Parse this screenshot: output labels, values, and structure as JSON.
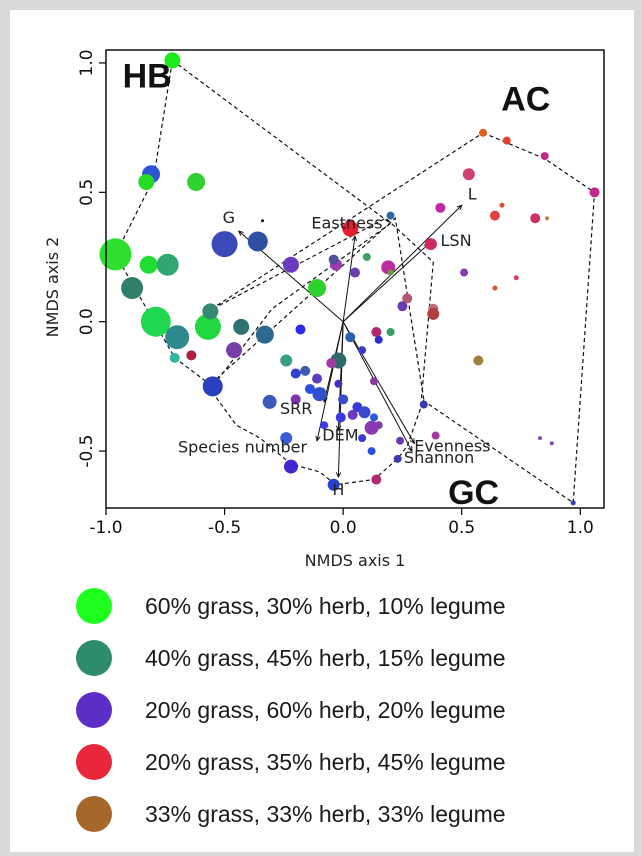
{
  "chart_data": {
    "type": "scatter",
    "xlabel": "NMDS axis 1",
    "ylabel": "NMDS axis 2",
    "xlim": [
      -1.0,
      1.1
    ],
    "ylim": [
      -0.72,
      1.05
    ],
    "xticks": [
      -1.0,
      -0.5,
      0.0,
      0.5,
      1.0
    ],
    "xtick_labels": [
      "-1.0",
      "-0.5",
      "0.0",
      "0.5",
      "1.0"
    ],
    "yticks": [
      -0.5,
      0.0,
      0.5,
      1.0
    ],
    "ytick_labels": [
      "-0.5",
      "0.0",
      "0.5",
      "1.0"
    ],
    "grid": false,
    "group_labels": [
      {
        "text": "HB",
        "x": -0.93,
        "y": 0.94
      },
      {
        "text": "AC",
        "x": 0.77,
        "y": 0.85
      },
      {
        "text": "GC",
        "x": 0.55,
        "y": -0.67
      }
    ],
    "hulls": [
      {
        "group": "HB",
        "points": [
          [
            -0.72,
            1.01
          ],
          [
            0.2,
            0.38
          ],
          [
            -0.3,
            0.05
          ],
          [
            -0.55,
            -0.25
          ],
          [
            -0.71,
            -0.14
          ],
          [
            -0.96,
            0.26
          ],
          [
            -0.8,
            0.55
          ]
        ]
      },
      {
        "group": "AC",
        "points": [
          [
            0.59,
            0.73
          ],
          [
            0.85,
            0.63
          ],
          [
            1.06,
            0.5
          ],
          [
            0.97,
            -0.7
          ],
          [
            0.33,
            -0.3
          ],
          [
            0.38,
            0.23
          ],
          [
            0.18,
            0.4
          ],
          [
            -0.57,
            0.04
          ]
        ]
      },
      {
        "group": "GC",
        "points": [
          [
            -0.57,
            -0.25
          ],
          [
            -0.45,
            -0.4
          ],
          [
            -0.35,
            -0.45
          ],
          [
            -0.22,
            -0.55
          ],
          [
            -0.1,
            -0.58
          ],
          [
            -0.03,
            -0.63
          ],
          [
            0.13,
            -0.61
          ],
          [
            0.23,
            -0.53
          ],
          [
            0.27,
            -0.48
          ],
          [
            0.34,
            -0.3
          ],
          [
            0.22,
            0.4
          ]
        ]
      }
    ],
    "vectors": [
      {
        "label": "L",
        "x": 0.5,
        "y": 0.45
      },
      {
        "label": "LSN",
        "x": 0.36,
        "y": 0.3
      },
      {
        "label": "Eastness",
        "x": 0.05,
        "y": 0.33
      },
      {
        "label": "G",
        "x": -0.44,
        "y": 0.35
      },
      {
        "label": "SRR",
        "x": -0.08,
        "y": -0.31
      },
      {
        "label": "DEM",
        "x": -0.02,
        "y": -0.42
      },
      {
        "label": "Species number",
        "x": -0.11,
        "y": -0.46
      },
      {
        "label": "Evenness",
        "x": 0.3,
        "y": -0.47
      },
      {
        "label": "Shannon",
        "x": 0.29,
        "y": -0.5
      },
      {
        "label": "H",
        "x": -0.02,
        "y": -0.6
      }
    ],
    "points": [
      {
        "x": -0.72,
        "y": 1.01,
        "r": 8,
        "c": "#1ee81e"
      },
      {
        "x": -0.81,
        "y": 0.57,
        "r": 9,
        "c": "#2e55d8"
      },
      {
        "x": -0.83,
        "y": 0.54,
        "r": 8,
        "c": "#22dd22"
      },
      {
        "x": -0.62,
        "y": 0.54,
        "r": 9,
        "c": "#30d030"
      },
      {
        "x": -0.96,
        "y": 0.26,
        "r": 16,
        "c": "#2ee02e"
      },
      {
        "x": -0.82,
        "y": 0.22,
        "r": 9,
        "c": "#20dd30"
      },
      {
        "x": -0.74,
        "y": 0.22,
        "r": 11,
        "c": "#2ea870"
      },
      {
        "x": -0.89,
        "y": 0.13,
        "r": 11,
        "c": "#2f7f6a"
      },
      {
        "x": -0.79,
        "y": 0.0,
        "r": 15,
        "c": "#22d850"
      },
      {
        "x": -0.7,
        "y": -0.06,
        "r": 12,
        "c": "#2f8a90"
      },
      {
        "x": -0.57,
        "y": -0.02,
        "r": 13,
        "c": "#22d840"
      },
      {
        "x": -0.56,
        "y": 0.04,
        "r": 8,
        "c": "#338a70"
      },
      {
        "x": -0.43,
        "y": -0.02,
        "r": 8,
        "c": "#2f7070"
      },
      {
        "x": -0.71,
        "y": -0.14,
        "r": 5,
        "c": "#2fb8a0"
      },
      {
        "x": -0.64,
        "y": -0.13,
        "r": 5,
        "c": "#b02040"
      },
      {
        "x": -0.5,
        "y": 0.3,
        "r": 13,
        "c": "#3a4ab8"
      },
      {
        "x": -0.36,
        "y": 0.31,
        "r": 10,
        "c": "#304fa0"
      },
      {
        "x": -0.34,
        "y": 0.39,
        "r": 1.5,
        "c": "#000000"
      },
      {
        "x": -0.33,
        "y": -0.05,
        "r": 9,
        "c": "#2e6a90"
      },
      {
        "x": -0.46,
        "y": -0.11,
        "r": 8,
        "c": "#7a3ea8"
      },
      {
        "x": -0.55,
        "y": -0.25,
        "r": 10,
        "c": "#2a40c0"
      },
      {
        "x": -0.22,
        "y": 0.22,
        "r": 8,
        "c": "#6a3ac0"
      },
      {
        "x": -0.11,
        "y": 0.13,
        "r": 9,
        "c": "#2ed02e"
      },
      {
        "x": -0.18,
        "y": -0.03,
        "r": 5,
        "c": "#2a2ae8"
      },
      {
        "x": -0.24,
        "y": -0.15,
        "r": 6,
        "c": "#35a080"
      },
      {
        "x": -0.2,
        "y": -0.2,
        "r": 5,
        "c": "#3040d0"
      },
      {
        "x": -0.16,
        "y": -0.19,
        "r": 5,
        "c": "#3f5ab0"
      },
      {
        "x": -0.11,
        "y": -0.22,
        "r": 5,
        "c": "#5a40c0"
      },
      {
        "x": -0.14,
        "y": -0.26,
        "r": 5,
        "c": "#2a50e0"
      },
      {
        "x": -0.09,
        "y": -0.27,
        "r": 4,
        "c": "#3070a0"
      },
      {
        "x": -0.1,
        "y": -0.28,
        "r": 7,
        "c": "#3050d0"
      },
      {
        "x": -0.2,
        "y": -0.3,
        "r": 5,
        "c": "#8030b0"
      },
      {
        "x": -0.31,
        "y": -0.31,
        "r": 7,
        "c": "#3e5ab8"
      },
      {
        "x": -0.08,
        "y": -0.4,
        "r": 4,
        "c": "#3a3af0"
      },
      {
        "x": -0.24,
        "y": -0.45,
        "r": 6,
        "c": "#3a5ad8"
      },
      {
        "x": -0.22,
        "y": -0.56,
        "r": 7,
        "c": "#4028d0"
      },
      {
        "x": -0.04,
        "y": -0.63,
        "r": 6,
        "c": "#2a40d0"
      },
      {
        "x": -0.03,
        "y": 0.22,
        "r": 6,
        "c": "#a03ab0"
      },
      {
        "x": 0.03,
        "y": 0.36,
        "r": 8,
        "c": "#e0202e"
      },
      {
        "x": -0.04,
        "y": 0.24,
        "r": 5,
        "c": "#5050a0"
      },
      {
        "x": 0.05,
        "y": 0.19,
        "r": 5,
        "c": "#6a40b0"
      },
      {
        "x": 0.1,
        "y": 0.25,
        "r": 4,
        "c": "#40a060"
      },
      {
        "x": 0.2,
        "y": 0.41,
        "r": 4,
        "c": "#2a6aa8"
      },
      {
        "x": 0.19,
        "y": 0.21,
        "r": 7,
        "c": "#c02aa0"
      },
      {
        "x": 0.2,
        "y": 0.19,
        "r": 3,
        "c": "#6a9a40"
      },
      {
        "x": 0.03,
        "y": -0.06,
        "r": 5,
        "c": "#2a60b0"
      },
      {
        "x": -0.02,
        "y": -0.15,
        "r": 8,
        "c": "#2e6a6a"
      },
      {
        "x": 0.14,
        "y": -0.04,
        "r": 5,
        "c": "#b02a70"
      },
      {
        "x": 0.15,
        "y": -0.07,
        "r": 4,
        "c": "#3030c0"
      },
      {
        "x": 0.2,
        "y": -0.04,
        "r": 4,
        "c": "#30a060"
      },
      {
        "x": 0.08,
        "y": -0.11,
        "r": 4,
        "c": "#3a3ac0"
      },
      {
        "x": -0.05,
        "y": -0.16,
        "r": 5,
        "c": "#a03aa0"
      },
      {
        "x": -0.02,
        "y": -0.24,
        "r": 4,
        "c": "#4030c0"
      },
      {
        "x": 0.0,
        "y": -0.3,
        "r": 5,
        "c": "#3a4ac8"
      },
      {
        "x": 0.13,
        "y": -0.23,
        "r": 4,
        "c": "#8a3aa0"
      },
      {
        "x": 0.06,
        "y": -0.33,
        "r": 5,
        "c": "#3a3ad8"
      },
      {
        "x": 0.04,
        "y": -0.36,
        "r": 5,
        "c": "#6a3ac0"
      },
      {
        "x": 0.09,
        "y": -0.35,
        "r": 6,
        "c": "#3a4ad0"
      },
      {
        "x": 0.13,
        "y": -0.37,
        "r": 4,
        "c": "#2a5ad8"
      },
      {
        "x": -0.01,
        "y": -0.37,
        "r": 5,
        "c": "#3a3ae0"
      },
      {
        "x": 0.15,
        "y": -0.4,
        "r": 4,
        "c": "#7a40b0"
      },
      {
        "x": 0.12,
        "y": -0.41,
        "r": 7,
        "c": "#8a3ab0"
      },
      {
        "x": 0.08,
        "y": -0.45,
        "r": 4,
        "c": "#3a3ad0"
      },
      {
        "x": 0.12,
        "y": -0.5,
        "r": 4,
        "c": "#2a50e0"
      },
      {
        "x": 0.14,
        "y": -0.61,
        "r": 5,
        "c": "#b02a70"
      },
      {
        "x": 0.23,
        "y": -0.53,
        "r": 4,
        "c": "#3a3ab0"
      },
      {
        "x": 0.24,
        "y": -0.46,
        "r": 4,
        "c": "#6a3ab0"
      },
      {
        "x": 0.25,
        "y": 0.06,
        "r": 5,
        "c": "#6a3ab0"
      },
      {
        "x": 0.27,
        "y": 0.09,
        "r": 5,
        "c": "#b05a70"
      },
      {
        "x": 0.37,
        "y": 0.3,
        "r": 6,
        "c": "#d02a60"
      },
      {
        "x": 0.41,
        "y": 0.44,
        "r": 5,
        "c": "#c02aa0"
      },
      {
        "x": 0.38,
        "y": 0.03,
        "r": 5,
        "c": "#8a3aa0"
      },
      {
        "x": 0.38,
        "y": 0.05,
        "r": 5,
        "c": "#c06a80"
      },
      {
        "x": 0.38,
        "y": 0.03,
        "r": 6,
        "c": "#b04040"
      },
      {
        "x": 0.34,
        "y": -0.32,
        "r": 4,
        "c": "#3a3ab0"
      },
      {
        "x": 0.39,
        "y": -0.44,
        "r": 4,
        "c": "#a03aa0"
      },
      {
        "x": 0.53,
        "y": 0.57,
        "r": 6,
        "c": "#d04070"
      },
      {
        "x": 0.51,
        "y": 0.19,
        "r": 4,
        "c": "#8a3ab0"
      },
      {
        "x": 0.57,
        "y": -0.15,
        "r": 5,
        "c": "#a08040"
      },
      {
        "x": 0.59,
        "y": 0.73,
        "r": 4,
        "c": "#e06020"
      },
      {
        "x": 0.69,
        "y": 0.7,
        "r": 4,
        "c": "#e04030"
      },
      {
        "x": 0.64,
        "y": 0.41,
        "r": 5,
        "c": "#e04040"
      },
      {
        "x": 0.67,
        "y": 0.45,
        "r": 2.5,
        "c": "#d05030"
      },
      {
        "x": 0.73,
        "y": 0.17,
        "r": 2.5,
        "c": "#d04060"
      },
      {
        "x": 0.64,
        "y": 0.13,
        "r": 2.5,
        "c": "#e05030"
      },
      {
        "x": 0.81,
        "y": 0.4,
        "r": 5,
        "c": "#d03060"
      },
      {
        "x": 0.86,
        "y": 0.4,
        "r": 2,
        "c": "#c08040"
      },
      {
        "x": 0.85,
        "y": 0.64,
        "r": 4,
        "c": "#c02a8a"
      },
      {
        "x": 1.06,
        "y": 0.5,
        "r": 5,
        "c": "#c02a8a"
      },
      {
        "x": 0.83,
        "y": -0.45,
        "r": 2,
        "c": "#8a4ab0"
      },
      {
        "x": 0.88,
        "y": -0.47,
        "r": 2,
        "c": "#8a4ab0"
      },
      {
        "x": 0.97,
        "y": -0.7,
        "r": 2.5,
        "c": "#3a3ab0"
      }
    ],
    "legend": [
      {
        "label": "60% grass, 30% herb, 10% legume",
        "color": "#1eff1e"
      },
      {
        "label": "40% grass, 45% herb, 15% legume",
        "color": "#2e8b6e"
      },
      {
        "label": "20% grass, 60% herb, 20% legume",
        "color": "#5b2ec8"
      },
      {
        "label": "20% grass, 35% herb, 45% legume",
        "color": "#e8283a"
      },
      {
        "label": "33% grass, 33% herb, 33% legume",
        "color": "#a5672a"
      }
    ]
  }
}
